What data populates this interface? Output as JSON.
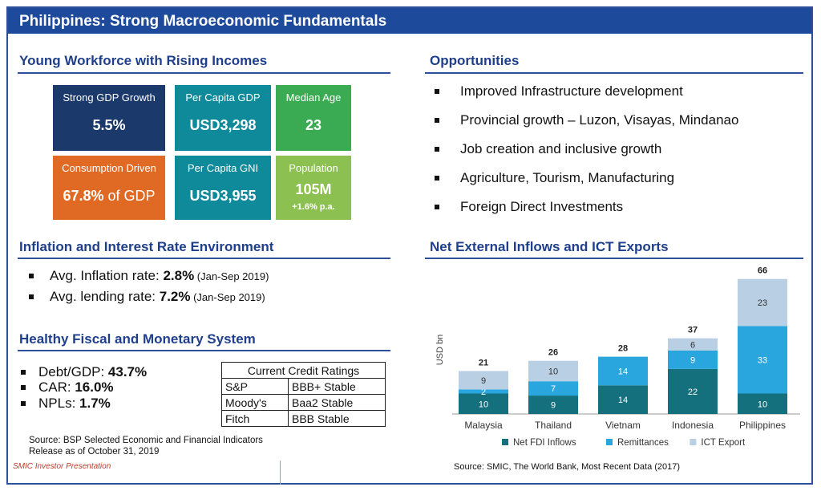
{
  "header": {
    "title": "Philippines: Strong Macroeconomic Fundamentals"
  },
  "workforce": {
    "title": "Young Workforce with Rising Incomes",
    "tiles": [
      {
        "label": "Strong GDP Growth",
        "value": "5.5%",
        "color": "#1b3a6b"
      },
      {
        "label": "Per Capita GDP",
        "value": "USD3,298",
        "color": "#0f8a9a"
      },
      {
        "label": "Median Age",
        "value": "23",
        "color": "#3aab52"
      },
      {
        "label": "Consumption Driven",
        "value": "67.8%",
        "value_suffix": " of GDP",
        "color": "#e06a24"
      },
      {
        "label": "Per Capita GNI",
        "value": "USD3,955",
        "color": "#0f8a9a"
      },
      {
        "label": "Population",
        "value": "105M",
        "sub": "+1.6% p.a.",
        "color": "#8cc152"
      }
    ]
  },
  "inflation": {
    "title": "Inflation and Interest Rate Environment",
    "items": [
      {
        "label": "Avg. Inflation rate: ",
        "value": "2.8%",
        "note": " (Jan-Sep 2019)"
      },
      {
        "label": "Avg. lending rate: ",
        "value": "7.2%",
        "note": " (Jan-Sep 2019)"
      }
    ]
  },
  "fiscal": {
    "title": "Healthy Fiscal and Monetary System",
    "items": [
      {
        "label": "Debt/GDP: ",
        "value": "43.7%"
      },
      {
        "label": "CAR: ",
        "value": "16.0%"
      },
      {
        "label": "NPLs: ",
        "value": "1.7%"
      }
    ],
    "ratings": {
      "header": "Current Credit Ratings",
      "rows": [
        {
          "agency": "S&P",
          "rating": "BBB+ Stable"
        },
        {
          "agency": "Moody's",
          "rating": "Baa2 Stable"
        },
        {
          "agency": "Fitch",
          "rating": "BBB Stable"
        }
      ]
    },
    "source": "Source: BSP Selected Economic and Financial Indicators",
    "release": "Release as of October 31, 2019"
  },
  "footer": {
    "label": "SMIC Investor Presentation"
  },
  "opportunities": {
    "title": "Opportunities",
    "items": [
      "Improved Infrastructure development",
      "Provincial growth – Luzon, Visayas, Mindanao",
      "Job creation and inclusive growth",
      "Agriculture, Tourism, Manufacturing",
      "Foreign Direct Investments"
    ]
  },
  "inflows": {
    "title": "Net External Inflows and ICT Exports",
    "source": "Source: SMIC, The World Bank, Most Recent Data (2017)"
  },
  "chart_data": {
    "type": "bar",
    "stacked": true,
    "ylabel": "USD bn",
    "categories": [
      "Malaysia",
      "Thailand",
      "Vietnam",
      "Indonesia",
      "Philippines"
    ],
    "series": [
      {
        "name": "Net FDI Inflows",
        "color": "#13707c",
        "values": [
          10,
          9,
          14,
          22,
          10
        ]
      },
      {
        "name": "Remittances",
        "color": "#2aa6de",
        "values": [
          2,
          7,
          14,
          9,
          33
        ]
      },
      {
        "name": "ICT Export",
        "color": "#b8cfe4",
        "values": [
          9,
          10,
          null,
          6,
          23
        ]
      }
    ],
    "totals": [
      21,
      26,
      28,
      37,
      66
    ],
    "legend": "bottom"
  }
}
